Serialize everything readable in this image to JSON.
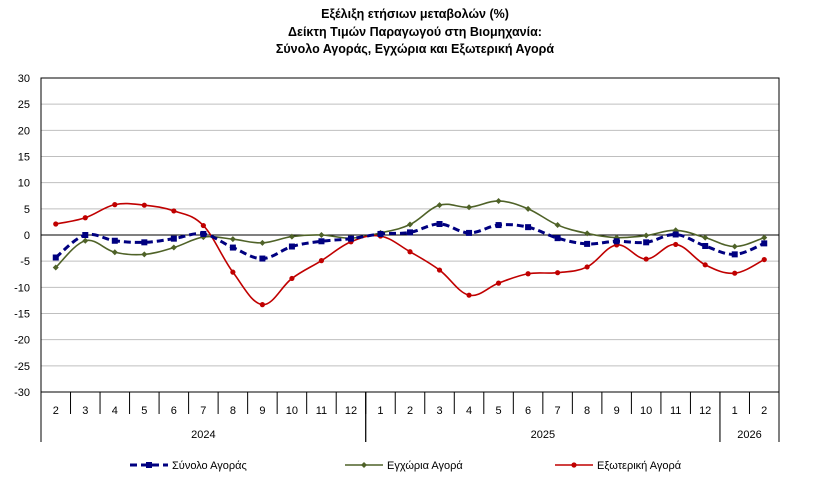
{
  "chart_data": {
    "type": "line",
    "title_lines": [
      "Εξέλιξη ετήσιων μεταβολών (%)",
      "Δείκτη Τιμών Παραγωγού στη Βιομηχανία:",
      "Σύνολο Αγοράς, Εγχώρια και Εξωτερική Αγορά"
    ],
    "ylim": [
      -30,
      30
    ],
    "yticks": [
      30,
      25,
      20,
      15,
      10,
      5,
      0,
      -5,
      -10,
      -15,
      -20,
      -25,
      -30
    ],
    "categories": [
      "2",
      "3",
      "4",
      "5",
      "6",
      "7",
      "8",
      "9",
      "10",
      "11",
      "12",
      "1",
      "2",
      "3",
      "4",
      "5",
      "6",
      "7",
      "8",
      "9",
      "10",
      "11",
      "12",
      "1",
      "2"
    ],
    "years": [
      {
        "label": "2024",
        "start": 0,
        "end": 11
      },
      {
        "label": "2025",
        "start": 11,
        "end": 23
      },
      {
        "label": "2026",
        "start": 23,
        "end": 25
      }
    ],
    "grid": true,
    "legend_position": "bottom",
    "series": [
      {
        "name": "Σύνολο Αγοράς",
        "color": "#000080",
        "style": "dashed",
        "marker": "square",
        "values": [
          -4.3,
          0.0,
          -1.1,
          -1.4,
          -0.7,
          0.2,
          -2.4,
          -4.5,
          -2.2,
          -1.2,
          -0.7,
          0.2,
          0.5,
          2.1,
          0.4,
          1.9,
          1.5,
          -0.6,
          -1.7,
          -1.2,
          -1.4,
          0.1,
          -2.1,
          -3.7,
          -1.6
        ]
      },
      {
        "name": "Εγχώρια Αγορά",
        "color": "#4F6228",
        "style": "solid",
        "marker": "diamond",
        "values": [
          -6.2,
          -1.1,
          -3.3,
          -3.7,
          -2.4,
          -0.4,
          -0.8,
          -1.5,
          -0.3,
          0.0,
          -0.6,
          0.4,
          2.0,
          5.7,
          5.3,
          6.5,
          5.0,
          1.9,
          0.3,
          -0.5,
          -0.1,
          0.9,
          -0.5,
          -2.2,
          -0.5
        ]
      },
      {
        "name": "Εξωτερική Αγορά",
        "color": "#C00000",
        "style": "solid",
        "marker": "circle",
        "values": [
          2.1,
          3.3,
          5.8,
          5.7,
          4.6,
          1.8,
          -7.1,
          -13.3,
          -8.3,
          -4.9,
          -1.3,
          -0.2,
          -3.2,
          -6.7,
          -11.5,
          -9.2,
          -7.4,
          -7.2,
          -6.1,
          -1.9,
          -4.6,
          -1.8,
          -5.7,
          -7.3,
          -4.7
        ]
      }
    ]
  }
}
